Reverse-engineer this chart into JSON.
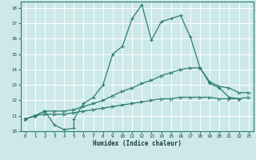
{
  "xlabel": "Humidex (Indice chaleur)",
  "xlim": [
    -0.5,
    23.5
  ],
  "ylim": [
    10,
    18.4
  ],
  "yticks": [
    10,
    11,
    12,
    13,
    14,
    15,
    16,
    17,
    18
  ],
  "xticks": [
    0,
    1,
    2,
    3,
    4,
    5,
    6,
    7,
    8,
    9,
    10,
    11,
    12,
    13,
    14,
    15,
    16,
    17,
    18,
    19,
    20,
    21,
    22,
    23
  ],
  "background_color": "#cce8e8",
  "grid_color": "#ffffff",
  "line_color": "#2e7d6e",
  "line1_x": [
    0,
    1,
    2,
    3,
    4,
    5,
    5,
    6,
    7,
    8,
    9,
    10,
    11,
    12,
    13,
    14,
    15,
    16,
    17,
    18,
    19,
    20,
    21,
    22
  ],
  "line1_y": [
    10.8,
    11.0,
    11.3,
    10.4,
    10.1,
    10.2,
    10.8,
    11.8,
    12.2,
    13.0,
    15.0,
    15.5,
    17.3,
    18.2,
    15.9,
    17.1,
    17.3,
    17.5,
    16.1,
    14.1,
    13.1,
    12.8,
    12.2,
    12.1
  ],
  "line2_x": [
    0,
    1,
    2,
    3,
    4,
    5,
    6,
    7,
    8,
    9,
    10,
    11,
    12,
    13,
    14,
    15,
    16,
    17,
    18,
    19,
    20,
    21,
    22,
    23
  ],
  "line2_y": [
    10.8,
    11.0,
    11.3,
    11.3,
    11.3,
    11.4,
    11.6,
    11.8,
    12.0,
    12.3,
    12.6,
    12.8,
    13.1,
    13.3,
    13.6,
    13.8,
    14.0,
    14.1,
    14.1,
    13.2,
    12.9,
    12.8,
    12.5,
    12.5
  ],
  "line3_x": [
    0,
    1,
    2,
    3,
    4,
    5,
    6,
    7,
    8,
    9,
    10,
    11,
    12,
    13,
    14,
    15,
    16,
    17,
    18,
    19,
    20,
    21,
    22,
    23
  ],
  "line3_y": [
    10.8,
    11.0,
    11.1,
    11.1,
    11.1,
    11.2,
    11.3,
    11.4,
    11.5,
    11.6,
    11.7,
    11.8,
    11.9,
    12.0,
    12.1,
    12.1,
    12.2,
    12.2,
    12.2,
    12.2,
    12.1,
    12.1,
    12.1,
    12.2
  ]
}
